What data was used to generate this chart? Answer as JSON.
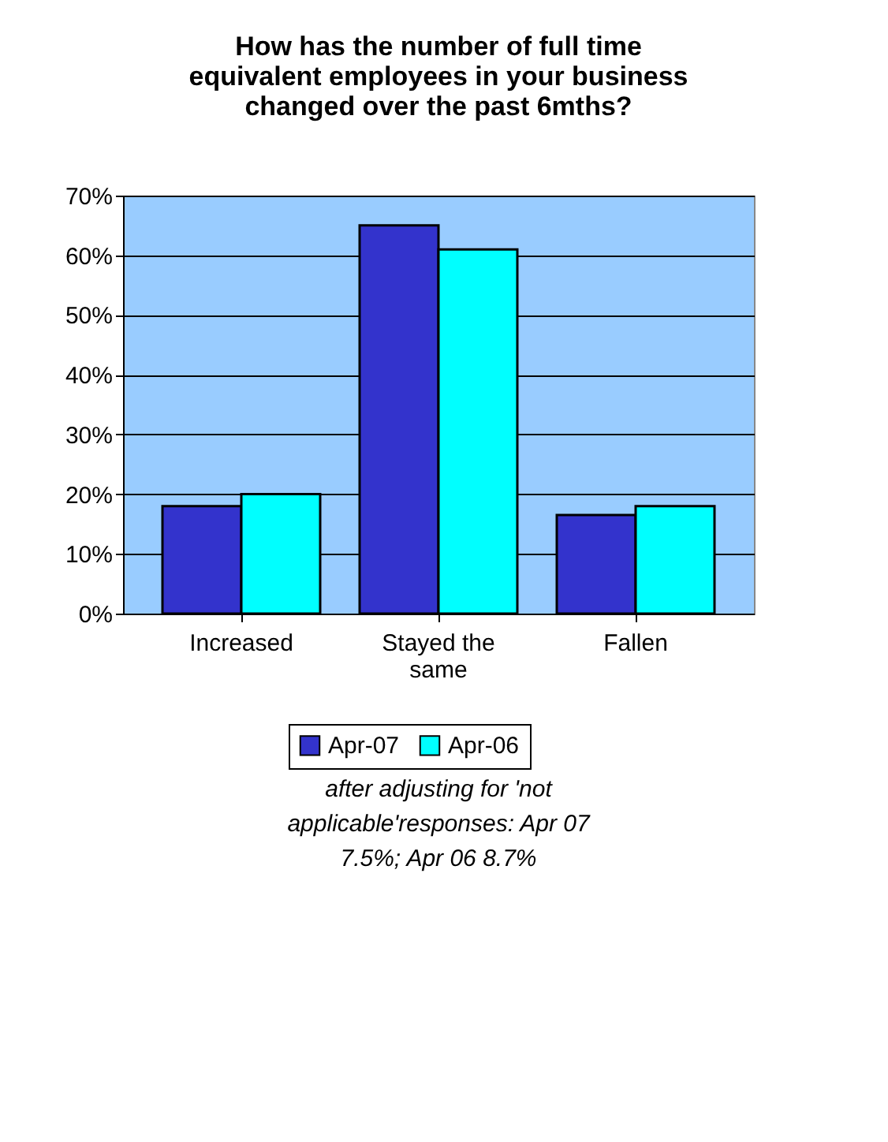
{
  "chart_data": {
    "type": "bar",
    "title": "How has the number of full time equivalent employees in your business changed over the past 6mths?",
    "categories": [
      "Increased",
      "Stayed the same",
      "Fallen"
    ],
    "series": [
      {
        "name": "Apr-07",
        "color": "#3333cc",
        "values": [
          18,
          65,
          16.5
        ]
      },
      {
        "name": "Apr-06",
        "color": "#00ffff",
        "values": [
          20,
          61,
          18
        ]
      }
    ],
    "ylim": [
      0,
      70
    ],
    "yticks": [
      {
        "value": 0,
        "label": "0%"
      },
      {
        "value": 10,
        "label": "10%"
      },
      {
        "value": 20,
        "label": "20%"
      },
      {
        "value": 30,
        "label": "30%"
      },
      {
        "value": 40,
        "label": "40%"
      },
      {
        "value": 50,
        "label": "50%"
      },
      {
        "value": 60,
        "label": "60%"
      },
      {
        "value": 70,
        "label": "70%"
      }
    ],
    "grid": "y",
    "legend": "bottom",
    "annotations": [
      "after adjusting for 'not applicable'responses: Apr 07 7.5%; Apr 06 8.7%"
    ]
  }
}
